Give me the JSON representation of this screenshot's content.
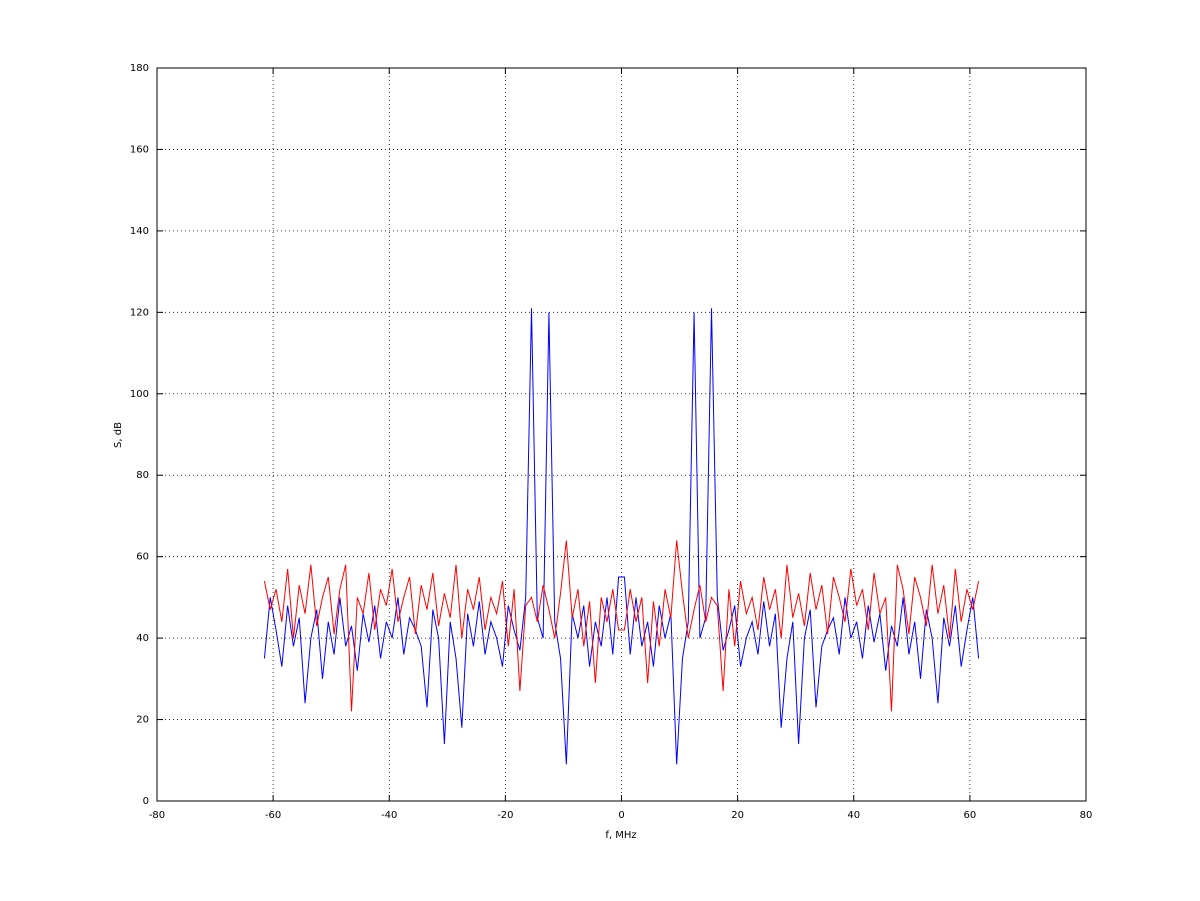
{
  "chart_data": {
    "type": "line",
    "xlabel": "f, MHz",
    "ylabel": "S, dB",
    "xlim": [
      -80,
      80
    ],
    "ylim": [
      0,
      180
    ],
    "xticks": [
      -80,
      -60,
      -40,
      -20,
      0,
      20,
      40,
      60,
      80
    ],
    "yticks": [
      0,
      20,
      40,
      60,
      80,
      100,
      120,
      140,
      160,
      180
    ],
    "grid": true,
    "x": [
      -61.5,
      -60.5,
      -59.5,
      -58.5,
      -57.5,
      -56.5,
      -55.5,
      -54.5,
      -53.5,
      -52.5,
      -51.5,
      -50.5,
      -49.5,
      -48.5,
      -47.5,
      -46.5,
      -45.5,
      -44.5,
      -43.5,
      -42.5,
      -41.5,
      -40.5,
      -39.5,
      -38.5,
      -37.5,
      -36.5,
      -35.5,
      -34.5,
      -33.5,
      -32.5,
      -31.5,
      -30.5,
      -29.5,
      -28.5,
      -27.5,
      -26.5,
      -25.5,
      -24.5,
      -23.5,
      -22.5,
      -21.5,
      -20.5,
      -19.5,
      -18.5,
      -17.5,
      -16.5,
      -15.5,
      -14.5,
      -13.5,
      -12.5,
      -11.5,
      -10.5,
      -9.5,
      -8.5,
      -7.5,
      -6.5,
      -5.5,
      -4.5,
      -3.5,
      -2.5,
      -1.5,
      -0.5,
      0.5,
      1.5,
      2.5,
      3.5,
      4.5,
      5.5,
      6.5,
      7.5,
      8.5,
      9.5,
      10.5,
      11.5,
      12.5,
      13.5,
      14.5,
      15.5,
      16.5,
      17.5,
      18.5,
      19.5,
      20.5,
      21.5,
      22.5,
      23.5,
      24.5,
      25.5,
      26.5,
      27.5,
      28.5,
      29.5,
      30.5,
      31.5,
      32.5,
      33.5,
      34.5,
      35.5,
      36.5,
      37.5,
      38.5,
      39.5,
      40.5,
      41.5,
      42.5,
      43.5,
      44.5,
      45.5,
      46.5,
      47.5,
      48.5,
      49.5,
      50.5,
      51.5,
      52.5,
      53.5,
      54.5,
      55.5,
      56.5,
      57.5,
      58.5,
      59.5,
      60.5,
      61.5
    ],
    "series": [
      {
        "color": "#0000ff",
        "values": [
          35,
          50,
          42,
          33,
          48,
          38,
          45,
          24,
          40,
          47,
          30,
          44,
          36,
          50,
          38,
          43,
          32,
          46,
          39,
          48,
          35,
          44,
          40,
          50,
          36,
          45,
          42,
          38,
          23,
          47,
          40,
          14,
          44,
          35,
          18,
          46,
          38,
          49,
          36,
          44,
          40,
          33,
          48,
          42,
          37,
          50,
          121,
          45,
          40,
          120,
          44,
          35,
          9,
          46,
          40,
          48,
          33,
          44,
          38,
          50,
          36,
          55,
          55,
          36,
          50,
          38,
          44,
          33,
          48,
          40,
          46,
          9,
          35,
          44,
          120,
          40,
          45,
          121,
          50,
          37,
          42,
          48,
          33,
          40,
          44,
          36,
          49,
          38,
          46,
          18,
          35,
          44,
          14,
          40,
          47,
          23,
          38,
          42,
          45,
          36,
          50,
          40,
          44,
          35,
          48,
          39,
          46,
          32,
          43,
          38,
          50,
          36,
          44,
          30,
          47,
          40,
          24,
          45,
          38,
          48,
          33,
          42,
          50,
          35
        ]
      },
      {
        "color": "#ff0000",
        "values": [
          54,
          47,
          52,
          44,
          57,
          40,
          53,
          46,
          58,
          43,
          50,
          55,
          41,
          52,
          58,
          22,
          50,
          46,
          56,
          42,
          52,
          48,
          57,
          44,
          50,
          55,
          41,
          53,
          47,
          56,
          43,
          51,
          45,
          58,
          40,
          52,
          47,
          55,
          42,
          50,
          46,
          54,
          38,
          52,
          27,
          48,
          50,
          44,
          53,
          47,
          40,
          51,
          64,
          45,
          52,
          38,
          49,
          29,
          50,
          44,
          52,
          42,
          42,
          52,
          44,
          50,
          29,
          49,
          38,
          52,
          45,
          64,
          51,
          40,
          47,
          53,
          44,
          50,
          48,
          27,
          52,
          38,
          54,
          46,
          50,
          42,
          55,
          47,
          52,
          40,
          58,
          45,
          51,
          43,
          56,
          47,
          53,
          41,
          55,
          50,
          44,
          57,
          48,
          52,
          42,
          56,
          46,
          50,
          22,
          58,
          52,
          41,
          55,
          50,
          43,
          58,
          46,
          53,
          40,
          57,
          44,
          52,
          47,
          54
        ]
      }
    ]
  }
}
